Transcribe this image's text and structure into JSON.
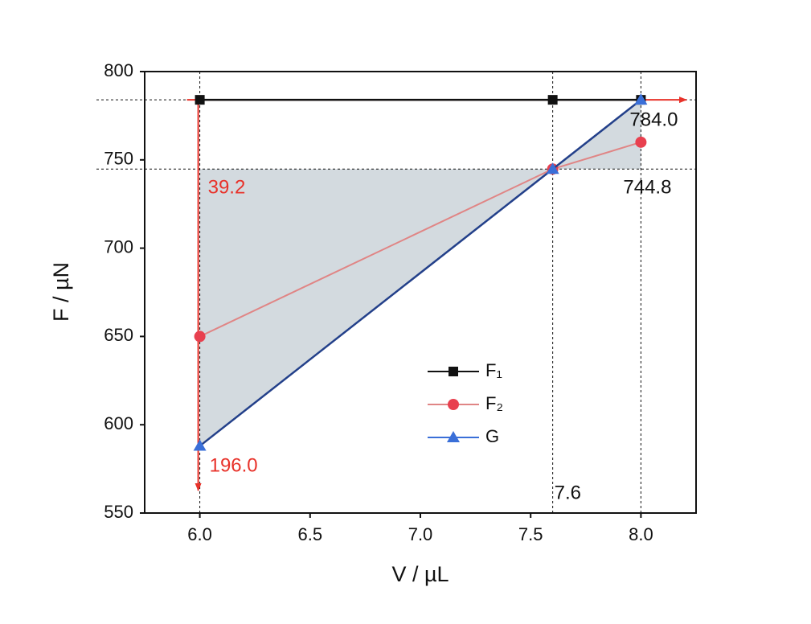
{
  "chart_data": {
    "type": "line",
    "x_label": "V / µL",
    "y_label": "F / µN",
    "x": [
      6.0,
      7.6,
      8.0
    ],
    "series": [
      {
        "name": "F₁",
        "color": "#111111",
        "marker": "square",
        "values": [
          784,
          784,
          784
        ]
      },
      {
        "name": "F₂",
        "color": "#e8404f",
        "marker": "circle",
        "values": [
          650,
          744.8,
          760
        ]
      },
      {
        "name": "G",
        "color": "#3a6fd8",
        "marker": "triangle",
        "values": [
          588,
          744.8,
          784
        ]
      }
    ],
    "xlim": [
      5.75,
      8.25
    ],
    "xticks": [
      {
        "value": 6.0,
        "label": "6.0"
      },
      {
        "value": 6.5,
        "label": "6.5"
      },
      {
        "value": 7.0,
        "label": "7.0"
      },
      {
        "value": 7.5,
        "label": "7.5"
      },
      {
        "value": 8.0,
        "label": "8.0"
      }
    ],
    "ylim": [
      550,
      800
    ],
    "yticks": [
      550,
      600,
      650,
      700,
      750,
      800
    ],
    "annotations": [
      {
        "text": "784.0",
        "color": "#111111"
      },
      {
        "text": "744.8",
        "color": "#111111"
      },
      {
        "text": "39.2",
        "color": "#e8322a"
      },
      {
        "text": "196.0",
        "color": "#e8322a"
      },
      {
        "text": "7.6",
        "color": "#111111"
      }
    ],
    "arrow_color": "#e8322a",
    "shade_color": "#d3dadf",
    "legend": "center"
  }
}
